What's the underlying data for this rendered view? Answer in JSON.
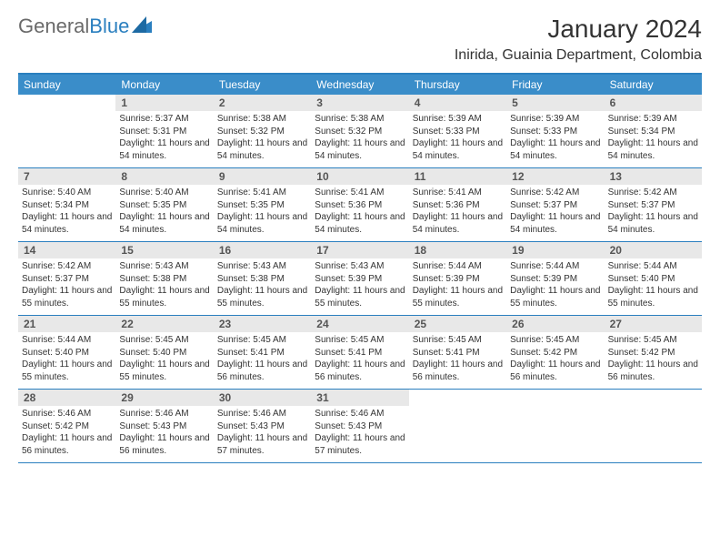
{
  "logo": {
    "part1": "General",
    "part2": "Blue"
  },
  "title": "January 2024",
  "location": "Inirida, Guainia Department, Colombia",
  "weekdays": [
    "Sunday",
    "Monday",
    "Tuesday",
    "Wednesday",
    "Thursday",
    "Friday",
    "Saturday"
  ],
  "colors": {
    "header_blue": "#3a8dc9",
    "border_blue": "#2a7fbf",
    "num_bar": "#e8e8e8",
    "text": "#333333",
    "logo_gray": "#6a6a6a"
  },
  "weeks": [
    [
      null,
      {
        "n": "1",
        "sr": "5:37 AM",
        "ss": "5:31 PM",
        "dl": "11 hours and 54 minutes."
      },
      {
        "n": "2",
        "sr": "5:38 AM",
        "ss": "5:32 PM",
        "dl": "11 hours and 54 minutes."
      },
      {
        "n": "3",
        "sr": "5:38 AM",
        "ss": "5:32 PM",
        "dl": "11 hours and 54 minutes."
      },
      {
        "n": "4",
        "sr": "5:39 AM",
        "ss": "5:33 PM",
        "dl": "11 hours and 54 minutes."
      },
      {
        "n": "5",
        "sr": "5:39 AM",
        "ss": "5:33 PM",
        "dl": "11 hours and 54 minutes."
      },
      {
        "n": "6",
        "sr": "5:39 AM",
        "ss": "5:34 PM",
        "dl": "11 hours and 54 minutes."
      }
    ],
    [
      {
        "n": "7",
        "sr": "5:40 AM",
        "ss": "5:34 PM",
        "dl": "11 hours and 54 minutes."
      },
      {
        "n": "8",
        "sr": "5:40 AM",
        "ss": "5:35 PM",
        "dl": "11 hours and 54 minutes."
      },
      {
        "n": "9",
        "sr": "5:41 AM",
        "ss": "5:35 PM",
        "dl": "11 hours and 54 minutes."
      },
      {
        "n": "10",
        "sr": "5:41 AM",
        "ss": "5:36 PM",
        "dl": "11 hours and 54 minutes."
      },
      {
        "n": "11",
        "sr": "5:41 AM",
        "ss": "5:36 PM",
        "dl": "11 hours and 54 minutes."
      },
      {
        "n": "12",
        "sr": "5:42 AM",
        "ss": "5:37 PM",
        "dl": "11 hours and 54 minutes."
      },
      {
        "n": "13",
        "sr": "5:42 AM",
        "ss": "5:37 PM",
        "dl": "11 hours and 54 minutes."
      }
    ],
    [
      {
        "n": "14",
        "sr": "5:42 AM",
        "ss": "5:37 PM",
        "dl": "11 hours and 55 minutes."
      },
      {
        "n": "15",
        "sr": "5:43 AM",
        "ss": "5:38 PM",
        "dl": "11 hours and 55 minutes."
      },
      {
        "n": "16",
        "sr": "5:43 AM",
        "ss": "5:38 PM",
        "dl": "11 hours and 55 minutes."
      },
      {
        "n": "17",
        "sr": "5:43 AM",
        "ss": "5:39 PM",
        "dl": "11 hours and 55 minutes."
      },
      {
        "n": "18",
        "sr": "5:44 AM",
        "ss": "5:39 PM",
        "dl": "11 hours and 55 minutes."
      },
      {
        "n": "19",
        "sr": "5:44 AM",
        "ss": "5:39 PM",
        "dl": "11 hours and 55 minutes."
      },
      {
        "n": "20",
        "sr": "5:44 AM",
        "ss": "5:40 PM",
        "dl": "11 hours and 55 minutes."
      }
    ],
    [
      {
        "n": "21",
        "sr": "5:44 AM",
        "ss": "5:40 PM",
        "dl": "11 hours and 55 minutes."
      },
      {
        "n": "22",
        "sr": "5:45 AM",
        "ss": "5:40 PM",
        "dl": "11 hours and 55 minutes."
      },
      {
        "n": "23",
        "sr": "5:45 AM",
        "ss": "5:41 PM",
        "dl": "11 hours and 56 minutes."
      },
      {
        "n": "24",
        "sr": "5:45 AM",
        "ss": "5:41 PM",
        "dl": "11 hours and 56 minutes."
      },
      {
        "n": "25",
        "sr": "5:45 AM",
        "ss": "5:41 PM",
        "dl": "11 hours and 56 minutes."
      },
      {
        "n": "26",
        "sr": "5:45 AM",
        "ss": "5:42 PM",
        "dl": "11 hours and 56 minutes."
      },
      {
        "n": "27",
        "sr": "5:45 AM",
        "ss": "5:42 PM",
        "dl": "11 hours and 56 minutes."
      }
    ],
    [
      {
        "n": "28",
        "sr": "5:46 AM",
        "ss": "5:42 PM",
        "dl": "11 hours and 56 minutes."
      },
      {
        "n": "29",
        "sr": "5:46 AM",
        "ss": "5:43 PM",
        "dl": "11 hours and 56 minutes."
      },
      {
        "n": "30",
        "sr": "5:46 AM",
        "ss": "5:43 PM",
        "dl": "11 hours and 57 minutes."
      },
      {
        "n": "31",
        "sr": "5:46 AM",
        "ss": "5:43 PM",
        "dl": "11 hours and 57 minutes."
      },
      null,
      null,
      null
    ]
  ],
  "labels": {
    "sunrise": "Sunrise:",
    "sunset": "Sunset:",
    "daylight": "Daylight:"
  }
}
